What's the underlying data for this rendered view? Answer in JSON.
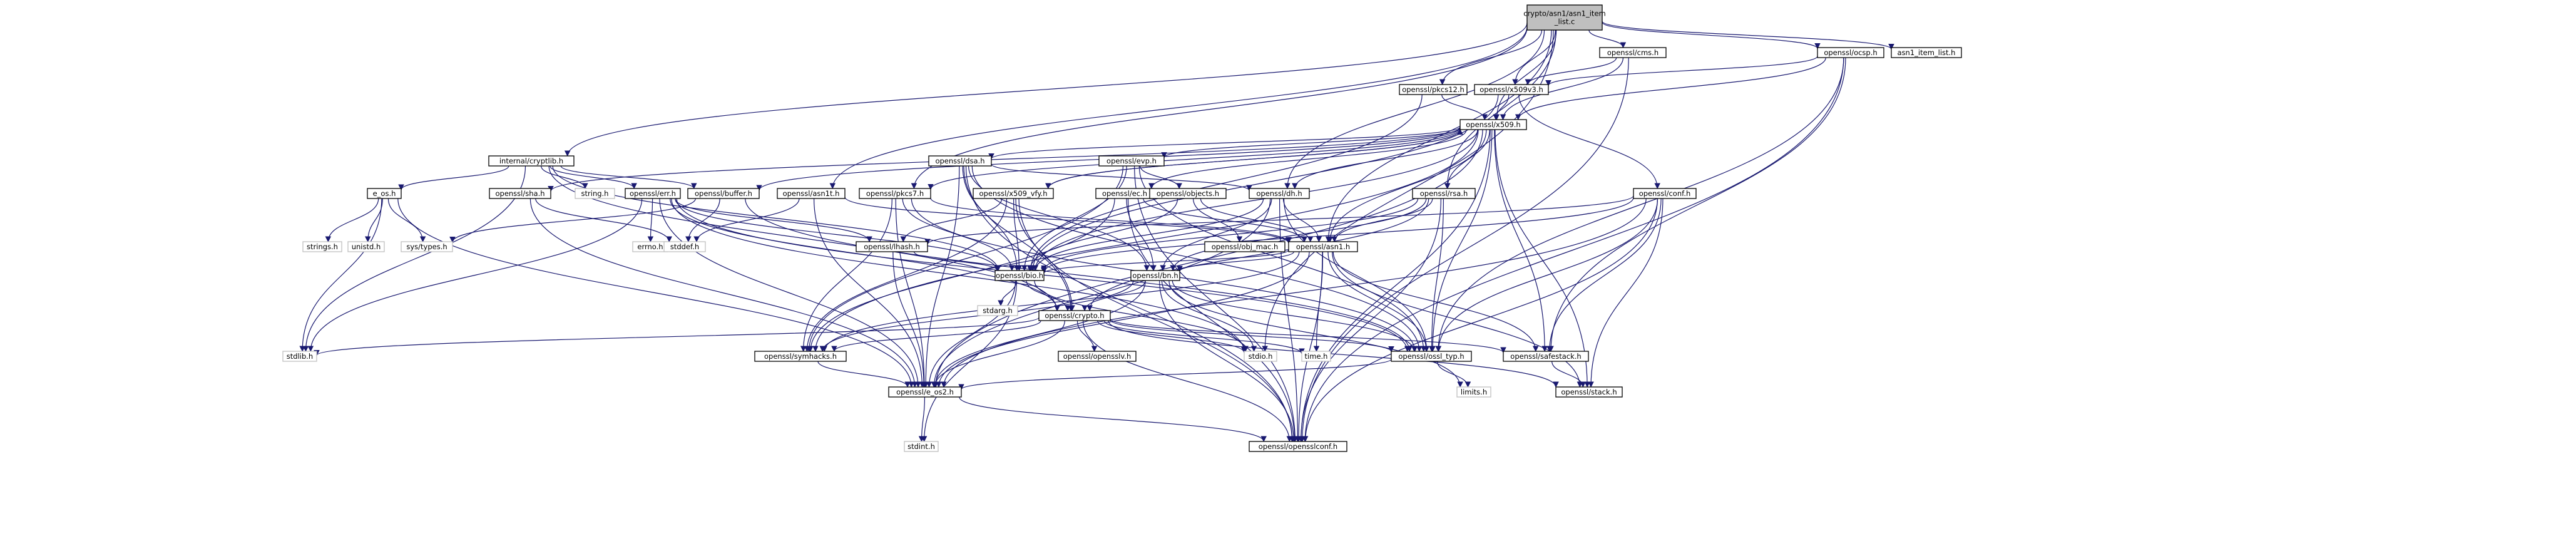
{
  "graph": {
    "root": "crypto/asn1/asn1_item_list.c",
    "nodes": [
      {
        "id": "root",
        "label": [
          "crypto/asn1/asn1_item",
          "_list.c"
        ],
        "style": "root"
      },
      {
        "id": "cms",
        "label": [
          "openssl/cms.h"
        ],
        "style": "linked"
      },
      {
        "id": "ocsp",
        "label": [
          "openssl/ocsp.h"
        ],
        "style": "linked"
      },
      {
        "id": "itemlist",
        "label": [
          "asn1_item_list.h"
        ],
        "style": "linked"
      },
      {
        "id": "pkcs12",
        "label": [
          "openssl/pkcs12.h"
        ],
        "style": "linked"
      },
      {
        "id": "x509v3",
        "label": [
          "openssl/x509v3.h"
        ],
        "style": "linked"
      },
      {
        "id": "x509",
        "label": [
          "openssl/x509.h"
        ],
        "style": "linked"
      },
      {
        "id": "cryptlib",
        "label": [
          "internal/cryptlib.h"
        ],
        "style": "linked"
      },
      {
        "id": "dsa",
        "label": [
          "openssl/dsa.h"
        ],
        "style": "linked"
      },
      {
        "id": "evp",
        "label": [
          "openssl/evp.h"
        ],
        "style": "linked"
      },
      {
        "id": "eos",
        "label": [
          "e_os.h"
        ],
        "style": "linked"
      },
      {
        "id": "sha",
        "label": [
          "openssl/sha.h"
        ],
        "style": "linked"
      },
      {
        "id": "string",
        "label": [
          "string.h"
        ],
        "style": "plain"
      },
      {
        "id": "err",
        "label": [
          "openssl/err.h"
        ],
        "style": "linked"
      },
      {
        "id": "buffer",
        "label": [
          "openssl/buffer.h"
        ],
        "style": "linked"
      },
      {
        "id": "asn1t",
        "label": [
          "openssl/asn1t.h"
        ],
        "style": "linked"
      },
      {
        "id": "pkcs7",
        "label": [
          "openssl/pkcs7.h"
        ],
        "style": "linked"
      },
      {
        "id": "x509vfy",
        "label": [
          "openssl/x509_vfy.h"
        ],
        "style": "linked"
      },
      {
        "id": "ec",
        "label": [
          "openssl/ec.h"
        ],
        "style": "linked"
      },
      {
        "id": "objects",
        "label": [
          "openssl/objects.h"
        ],
        "style": "linked"
      },
      {
        "id": "dh",
        "label": [
          "openssl/dh.h"
        ],
        "style": "linked"
      },
      {
        "id": "rsa",
        "label": [
          "openssl/rsa.h"
        ],
        "style": "linked"
      },
      {
        "id": "conf",
        "label": [
          "openssl/conf.h"
        ],
        "style": "linked"
      },
      {
        "id": "strings",
        "label": [
          "strings.h"
        ],
        "style": "plain"
      },
      {
        "id": "unistd",
        "label": [
          "unistd.h"
        ],
        "style": "plain"
      },
      {
        "id": "systypes",
        "label": [
          "sys/types.h"
        ],
        "style": "plain"
      },
      {
        "id": "errno",
        "label": [
          "errno.h"
        ],
        "style": "plain"
      },
      {
        "id": "stddef",
        "label": [
          "stddef.h"
        ],
        "style": "plain"
      },
      {
        "id": "lhash",
        "label": [
          "openssl/lhash.h"
        ],
        "style": "linked"
      },
      {
        "id": "objmac",
        "label": [
          "openssl/obj_mac.h"
        ],
        "style": "linked"
      },
      {
        "id": "asn1",
        "label": [
          "openssl/asn1.h"
        ],
        "style": "linked"
      },
      {
        "id": "bio",
        "label": [
          "openssl/bio.h"
        ],
        "style": "linked"
      },
      {
        "id": "bn",
        "label": [
          "openssl/bn.h"
        ],
        "style": "linked"
      },
      {
        "id": "stdarg",
        "label": [
          "stdarg.h"
        ],
        "style": "plain"
      },
      {
        "id": "crypto",
        "label": [
          "openssl/crypto.h"
        ],
        "style": "linked"
      },
      {
        "id": "stdlib",
        "label": [
          "stdlib.h"
        ],
        "style": "plain"
      },
      {
        "id": "symhacks",
        "label": [
          "openssl/symhacks.h"
        ],
        "style": "linked"
      },
      {
        "id": "opensslv",
        "label": [
          "openssl/opensslv.h"
        ],
        "style": "linked"
      },
      {
        "id": "stdio",
        "label": [
          "stdio.h"
        ],
        "style": "plain"
      },
      {
        "id": "time",
        "label": [
          "time.h"
        ],
        "style": "plain"
      },
      {
        "id": "ossltyp",
        "label": [
          "openssl/ossl_typ.h"
        ],
        "style": "linked"
      },
      {
        "id": "safestack",
        "label": [
          "openssl/safestack.h"
        ],
        "style": "linked"
      },
      {
        "id": "limits",
        "label": [
          "limits.h"
        ],
        "style": "plain"
      },
      {
        "id": "eos2",
        "label": [
          "openssl/e_os2.h"
        ],
        "style": "linked"
      },
      {
        "id": "stack",
        "label": [
          "openssl/stack.h"
        ],
        "style": "linked"
      },
      {
        "id": "stdint",
        "label": [
          "stdint.h"
        ],
        "style": "plain"
      },
      {
        "id": "opensslconf",
        "label": [
          "openssl/opensslconf.h"
        ],
        "style": "linked"
      }
    ],
    "edges": [
      [
        "root",
        "cms"
      ],
      [
        "root",
        "ocsp"
      ],
      [
        "root",
        "itemlist"
      ],
      [
        "root",
        "pkcs12"
      ],
      [
        "root",
        "x509v3"
      ],
      [
        "root",
        "cryptlib"
      ],
      [
        "root",
        "asn1t"
      ],
      [
        "root",
        "pkcs7"
      ],
      [
        "root",
        "dh"
      ],
      [
        "root",
        "rsa"
      ],
      [
        "root",
        "asn1"
      ],
      [
        "root",
        "stdio"
      ],
      [
        "root",
        "x509"
      ],
      [
        "cms",
        "x509v3"
      ],
      [
        "cms",
        "x509"
      ],
      [
        "cms",
        "opensslconf"
      ],
      [
        "ocsp",
        "x509v3"
      ],
      [
        "ocsp",
        "x509"
      ],
      [
        "ocsp",
        "ossltyp"
      ],
      [
        "ocsp",
        "safestack"
      ],
      [
        "ocsp",
        "opensslconf"
      ],
      [
        "pkcs12",
        "x509"
      ],
      [
        "pkcs12",
        "bio"
      ],
      [
        "x509v3",
        "x509"
      ],
      [
        "x509v3",
        "bio"
      ],
      [
        "x509v3",
        "conf"
      ],
      [
        "x509",
        "dsa"
      ],
      [
        "x509",
        "evp"
      ],
      [
        "x509",
        "sha"
      ],
      [
        "x509",
        "buffer"
      ],
      [
        "x509",
        "pkcs7"
      ],
      [
        "x509",
        "x509vfy"
      ],
      [
        "x509",
        "ec"
      ],
      [
        "x509",
        "dh"
      ],
      [
        "x509",
        "rsa"
      ],
      [
        "x509",
        "asn1"
      ],
      [
        "x509",
        "bio"
      ],
      [
        "x509",
        "symhacks"
      ],
      [
        "x509",
        "eos2"
      ],
      [
        "x509",
        "ossltyp"
      ],
      [
        "x509",
        "safestack"
      ],
      [
        "x509",
        "stack"
      ],
      [
        "x509",
        "opensslconf"
      ],
      [
        "cryptlib",
        "eos"
      ],
      [
        "cryptlib",
        "string"
      ],
      [
        "cryptlib",
        "err"
      ],
      [
        "cryptlib",
        "buffer"
      ],
      [
        "cryptlib",
        "bio"
      ],
      [
        "cryptlib",
        "crypto"
      ],
      [
        "cryptlib",
        "stdlib"
      ],
      [
        "dsa",
        "dh"
      ],
      [
        "dsa",
        "bio"
      ],
      [
        "dsa",
        "bn"
      ],
      [
        "dsa",
        "crypto"
      ],
      [
        "dsa",
        "ossltyp"
      ],
      [
        "dsa",
        "eos2"
      ],
      [
        "dsa",
        "opensslconf"
      ],
      [
        "evp",
        "objects"
      ],
      [
        "evp",
        "bio"
      ],
      [
        "evp",
        "symhacks"
      ],
      [
        "evp",
        "ossltyp"
      ],
      [
        "evp",
        "opensslconf"
      ],
      [
        "eos",
        "strings"
      ],
      [
        "eos",
        "unistd"
      ],
      [
        "eos",
        "systypes"
      ],
      [
        "eos",
        "eos2"
      ],
      [
        "eos",
        "stdlib"
      ],
      [
        "sha",
        "stddef"
      ],
      [
        "sha",
        "eos2"
      ],
      [
        "err",
        "errno"
      ],
      [
        "err",
        "stdio"
      ],
      [
        "err",
        "bio"
      ],
      [
        "err",
        "crypto"
      ],
      [
        "err",
        "lhash"
      ],
      [
        "err",
        "stdlib"
      ],
      [
        "err",
        "ossltyp"
      ],
      [
        "err",
        "eos2"
      ],
      [
        "buffer",
        "systypes"
      ],
      [
        "buffer",
        "stddef"
      ],
      [
        "buffer",
        "ossltyp"
      ],
      [
        "asn1t",
        "stddef"
      ],
      [
        "asn1t",
        "asn1"
      ],
      [
        "asn1t",
        "eos2"
      ],
      [
        "pkcs7",
        "asn1"
      ],
      [
        "pkcs7",
        "bio"
      ],
      [
        "pkcs7",
        "symhacks"
      ],
      [
        "pkcs7",
        "eos2"
      ],
      [
        "pkcs7",
        "ossltyp"
      ],
      [
        "x509vfy",
        "x509"
      ],
      [
        "x509vfy",
        "lhash"
      ],
      [
        "x509vfy",
        "bio"
      ],
      [
        "x509vfy",
        "crypto"
      ],
      [
        "x509vfy",
        "symhacks"
      ],
      [
        "x509vfy",
        "opensslconf"
      ],
      [
        "ec",
        "asn1"
      ],
      [
        "ec",
        "bn"
      ],
      [
        "ec",
        "symhacks"
      ],
      [
        "ec",
        "opensslconf"
      ],
      [
        "objects",
        "objmac"
      ],
      [
        "objects",
        "asn1"
      ],
      [
        "objects",
        "bio"
      ],
      [
        "dh",
        "asn1"
      ],
      [
        "dh",
        "bio"
      ],
      [
        "dh",
        "bn"
      ],
      [
        "dh",
        "ossltyp"
      ],
      [
        "dh",
        "opensslconf"
      ],
      [
        "dh",
        "eos2"
      ],
      [
        "rsa",
        "asn1"
      ],
      [
        "rsa",
        "bio"
      ],
      [
        "rsa",
        "bn"
      ],
      [
        "rsa",
        "crypto"
      ],
      [
        "rsa",
        "ossltyp"
      ],
      [
        "rsa",
        "opensslconf"
      ],
      [
        "conf",
        "bio"
      ],
      [
        "conf",
        "lhash"
      ],
      [
        "conf",
        "safestack"
      ],
      [
        "conf",
        "stack"
      ],
      [
        "conf",
        "ossltyp"
      ],
      [
        "conf",
        "eos2"
      ],
      [
        "conf",
        "opensslconf"
      ],
      [
        "lhash",
        "bio"
      ],
      [
        "lhash",
        "eos2"
      ],
      [
        "asn1",
        "time"
      ],
      [
        "asn1",
        "bio"
      ],
      [
        "asn1",
        "bn"
      ],
      [
        "asn1",
        "ossltyp"
      ],
      [
        "asn1",
        "safestack"
      ],
      [
        "asn1",
        "stack"
      ],
      [
        "asn1",
        "symhacks"
      ],
      [
        "asn1",
        "opensslconf"
      ],
      [
        "asn1",
        "eos2"
      ],
      [
        "bio",
        "stdarg"
      ],
      [
        "bio",
        "stdio"
      ],
      [
        "bio",
        "crypto"
      ],
      [
        "bio",
        "eos2"
      ],
      [
        "bio",
        "stdint"
      ],
      [
        "bn",
        "stdio"
      ],
      [
        "bn",
        "crypto"
      ],
      [
        "bn",
        "ossltyp"
      ],
      [
        "bn",
        "symhacks"
      ],
      [
        "bn",
        "eos2"
      ],
      [
        "bn",
        "limits"
      ],
      [
        "bn",
        "opensslconf"
      ],
      [
        "crypto",
        "stdlib"
      ],
      [
        "crypto",
        "symhacks"
      ],
      [
        "crypto",
        "opensslv"
      ],
      [
        "crypto",
        "stdio"
      ],
      [
        "crypto",
        "time"
      ],
      [
        "crypto",
        "ossltyp"
      ],
      [
        "crypto",
        "safestack"
      ],
      [
        "crypto",
        "eos2"
      ],
      [
        "crypto",
        "stack"
      ],
      [
        "crypto",
        "opensslconf"
      ],
      [
        "symhacks",
        "eos2"
      ],
      [
        "ossltyp",
        "limits"
      ],
      [
        "ossltyp",
        "eos2"
      ],
      [
        "safestack",
        "stack"
      ],
      [
        "eos2",
        "stdint"
      ],
      [
        "eos2",
        "opensslconf"
      ]
    ]
  }
}
